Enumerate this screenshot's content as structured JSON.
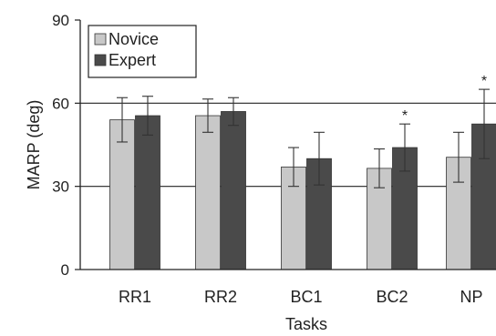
{
  "chart_data": {
    "type": "bar",
    "title": "",
    "xlabel": "Tasks",
    "ylabel": "MARP (deg)",
    "ylim": [
      0,
      90
    ],
    "yticks": [
      0,
      30,
      60,
      90
    ],
    "categories": [
      "RR1",
      "RR2",
      "BC1",
      "BC2",
      "NP"
    ],
    "series": [
      {
        "name": "Novice",
        "color": "#c8c8c8",
        "values": [
          54,
          55.5,
          37,
          36.5,
          40.5
        ],
        "errors": [
          8,
          6,
          7,
          7,
          9
        ]
      },
      {
        "name": "Expert",
        "color": "#4a4a4a",
        "values": [
          55.5,
          57,
          40,
          44,
          52.5
        ],
        "errors": [
          7,
          5,
          9.5,
          8.5,
          12.5
        ]
      }
    ],
    "annotations": [
      {
        "category": "BC2",
        "series": "Expert",
        "text": "*"
      },
      {
        "category": "NP",
        "series": "Expert",
        "text": "*"
      }
    ],
    "reference_lines": [
      30,
      60
    ],
    "legend": "top-left"
  }
}
